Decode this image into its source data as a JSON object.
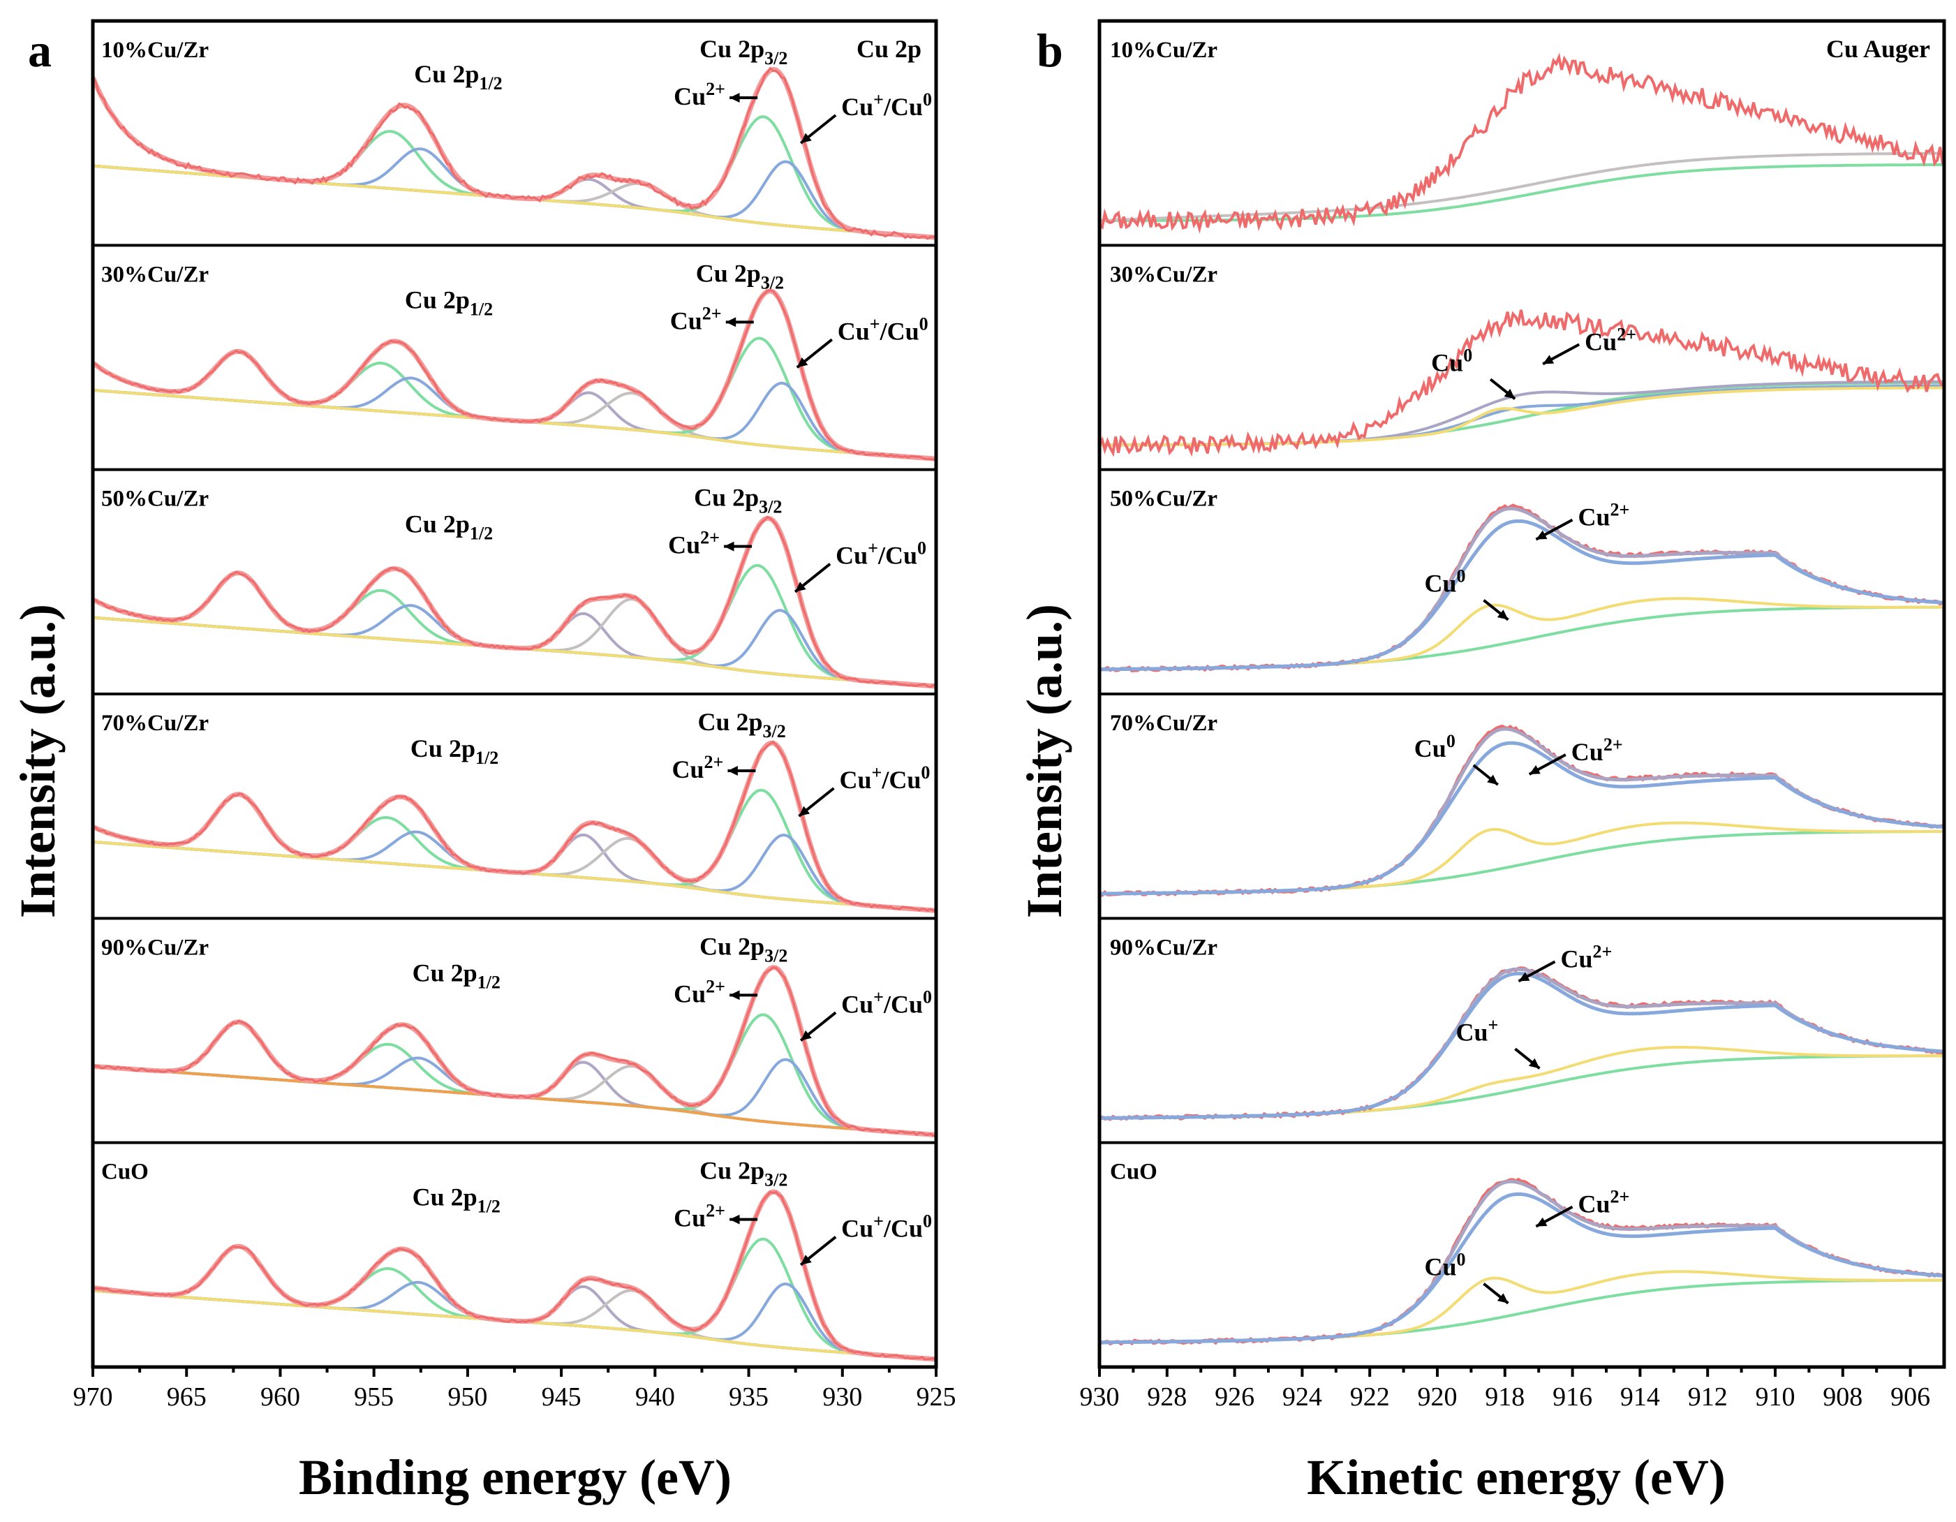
{
  "chart_data": [
    {
      "type": "line",
      "panel": "a",
      "title": "Cu 2p",
      "xlabel": "Binding energy (eV)",
      "ylabel": "Intensity (a.u.)",
      "xlim": [
        970,
        925
      ],
      "xticks": [
        970,
        965,
        960,
        955,
        950,
        945,
        940,
        935,
        930,
        925
      ],
      "colors": {
        "raw": "#ef6b6b",
        "fit": "#f39a9a",
        "cu2": "#7edda0",
        "cu1": "#87a8dd",
        "sat": "#b0a6c6",
        "sat2": "#c4c0c0",
        "bg": "#f2dc73",
        "bg_orange": "#f0a04b"
      },
      "annotations": {
        "p12_main": "Cu 2p",
        "p12_sub": "1/2",
        "p32_main": "Cu 2p",
        "p32_sub": "3/2",
        "cu2_main": "Cu",
        "cu2_sup": "2+",
        "cu10_a": "Cu",
        "cu10_b": "+",
        "cu10_c": "/Cu",
        "cu10_d": "0"
      },
      "series": [
        {
          "name": "10%Cu/Zr",
          "p32": 933.6,
          "p12": 953.3,
          "amp32": 1.0,
          "amp12": 0.5,
          "sat": [
            943.5,
            940.8
          ],
          "satAmp": [
            0.16,
            0.16
          ],
          "bgStart": 0.42,
          "bgEnd": 0.0,
          "rawStart": 1.0
        },
        {
          "name": "30%Cu/Zr",
          "p32": 933.8,
          "p12": 953.8,
          "amp32": 1.0,
          "amp12": 0.42,
          "sat": [
            943.5,
            941.2
          ],
          "satAmp": [
            0.22,
            0.24
          ],
          "bgStart": 0.42,
          "bgEnd": 0.02,
          "rawStart": 0.6
        },
        {
          "name": "50%Cu/Zr",
          "p32": 933.9,
          "p12": 953.8,
          "amp32": 1.0,
          "amp12": 0.42,
          "sat": [
            943.8,
            941.2
          ],
          "satAmp": [
            0.26,
            0.38
          ],
          "bgStart": 0.4,
          "bgEnd": 0.0,
          "rawStart": 0.52
        },
        {
          "name": "70%Cu/Zr",
          "p32": 933.7,
          "p12": 953.5,
          "amp32": 1.0,
          "amp12": 0.4,
          "sat": [
            943.8,
            941.4
          ],
          "satAmp": [
            0.28,
            0.28
          ],
          "bgStart": 0.4,
          "bgEnd": 0.0,
          "rawStart": 0.5
        },
        {
          "name": "90%Cu/Zr",
          "p32": 933.6,
          "p12": 953.4,
          "amp32": 1.0,
          "amp12": 0.38,
          "sat": [
            943.8,
            941.2
          ],
          "satAmp": [
            0.26,
            0.26
          ],
          "bgStart": 0.4,
          "bgEnd": 0.0,
          "rawStart": 0.4,
          "orangeBg": true
        },
        {
          "name": "CuO",
          "p32": 933.6,
          "p12": 953.4,
          "amp32": 1.0,
          "amp12": 0.38,
          "sat": [
            943.8,
            941.2
          ],
          "satAmp": [
            0.26,
            0.26
          ],
          "bgStart": 0.4,
          "bgEnd": 0.0,
          "rawStart": 0.42
        }
      ]
    },
    {
      "type": "line",
      "panel": "b",
      "title": "Cu Auger",
      "xlabel": "Kinetic energy (eV)",
      "ylabel": "Intensity (a.u.)",
      "xlim": [
        930,
        905
      ],
      "xticks": [
        930,
        928,
        926,
        924,
        922,
        920,
        918,
        916,
        914,
        912,
        910,
        908,
        906
      ],
      "colors": {
        "raw": "#ef6b6b",
        "cu2": "#87a8dd",
        "cu0": "#f2dc73",
        "sum": "#a9a4c4",
        "bg": "#7edda0",
        "bg_grey": "#c4c0c0"
      },
      "annotations": {
        "cu_main": "Cu",
        "cu0_sup": "0",
        "cu1_sup": "+",
        "cu2_sup": "2+"
      },
      "series": [
        {
          "name": "10%Cu/Zr",
          "peak": 916.5,
          "amp": 0.9,
          "noisy": true
        },
        {
          "name": "30%Cu/Zr",
          "peak": 917.6,
          "amp": 0.75,
          "noisy": true
        },
        {
          "name": "50%Cu/Zr",
          "peak": 917.8,
          "amp": 0.95
        },
        {
          "name": "70%Cu/Zr",
          "peak": 918.0,
          "amp": 0.98
        },
        {
          "name": "90%Cu/Zr",
          "peak": 917.8,
          "amp": 0.92
        },
        {
          "name": "CuO",
          "peak": 917.8,
          "amp": 0.95
        }
      ]
    }
  ]
}
